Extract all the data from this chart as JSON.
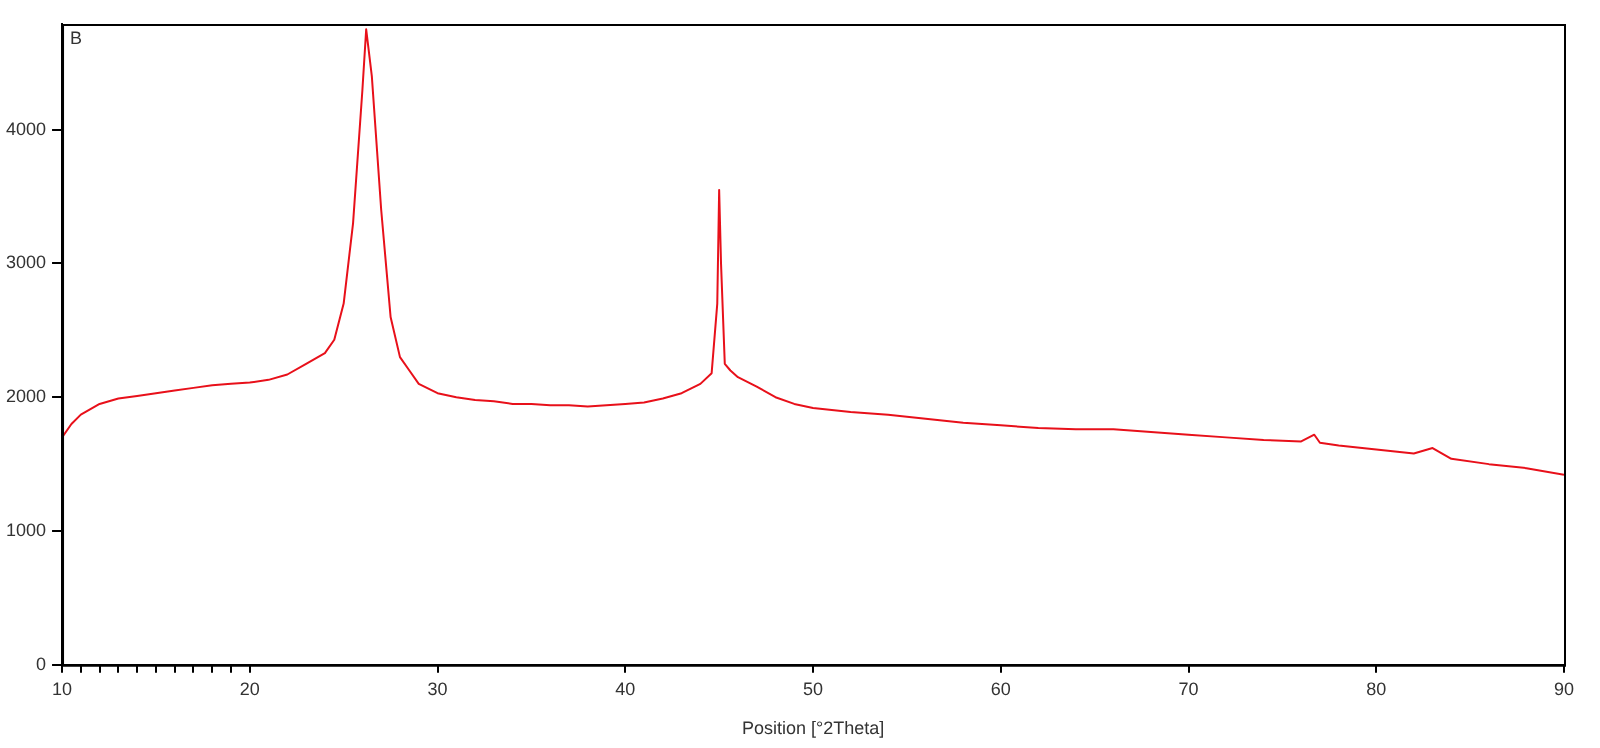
{
  "chart_data": {
    "type": "line",
    "xlabel": "Position [°2Theta]",
    "annotations": [
      "B"
    ],
    "x": [
      10,
      10.5,
      11,
      12,
      13,
      14,
      15,
      16,
      17,
      18,
      19,
      20,
      21,
      22,
      23,
      24,
      24.5,
      25,
      25.5,
      26,
      26.2,
      26.5,
      27,
      27.5,
      28,
      28.5,
      29,
      30,
      31,
      32,
      33,
      34,
      35,
      36,
      37,
      38,
      39,
      40,
      41,
      42,
      43,
      44,
      44.6,
      44.9,
      45,
      45.1,
      45.3,
      45.6,
      46,
      47,
      48,
      49,
      50,
      52,
      54,
      56,
      58,
      60,
      62,
      64,
      66,
      68,
      70,
      72,
      74,
      76,
      76.7,
      77,
      78,
      80,
      82,
      83,
      84,
      86,
      88,
      90
    ],
    "series": [
      {
        "color": "#e8101a",
        "values": [
          1700,
          1800,
          1870,
          1950,
          1990,
          2010,
          2030,
          2050,
          2070,
          2090,
          2100,
          2110,
          2130,
          2170,
          2250,
          2330,
          2430,
          2700,
          3300,
          4300,
          4750,
          4400,
          3400,
          2600,
          2300,
          2200,
          2100,
          2030,
          2000,
          1980,
          1970,
          1950,
          1950,
          1940,
          1940,
          1930,
          1940,
          1950,
          1960,
          1990,
          2030,
          2100,
          2180,
          2700,
          3550,
          3000,
          2250,
          2200,
          2150,
          2080,
          2000,
          1950,
          1920,
          1890,
          1870,
          1840,
          1810,
          1790,
          1770,
          1760,
          1760,
          1740,
          1720,
          1700,
          1680,
          1670,
          1720,
          1660,
          1640,
          1610,
          1580,
          1620,
          1540,
          1500,
          1470,
          1420
        ]
      }
    ],
    "xlim": [
      10,
      90
    ],
    "ylim": [
      0,
      4790
    ],
    "xticks": [
      10,
      {
        "value": 11,
        "label": null
      },
      {
        "value": 12,
        "label": null
      },
      {
        "value": 13,
        "label": null
      },
      {
        "value": 14,
        "label": null
      },
      {
        "value": 15,
        "label": null
      },
      {
        "value": 16,
        "label": null
      },
      {
        "value": 17,
        "label": null
      },
      {
        "value": 18,
        "label": null
      },
      {
        "value": 19,
        "label": null
      },
      20,
      30,
      40,
      50,
      60,
      70,
      80,
      90
    ],
    "yticks": [
      0,
      1000,
      2000,
      3000,
      4000
    ],
    "grid": false,
    "legend": false,
    "marker": "none",
    "line_style": "solid"
  }
}
